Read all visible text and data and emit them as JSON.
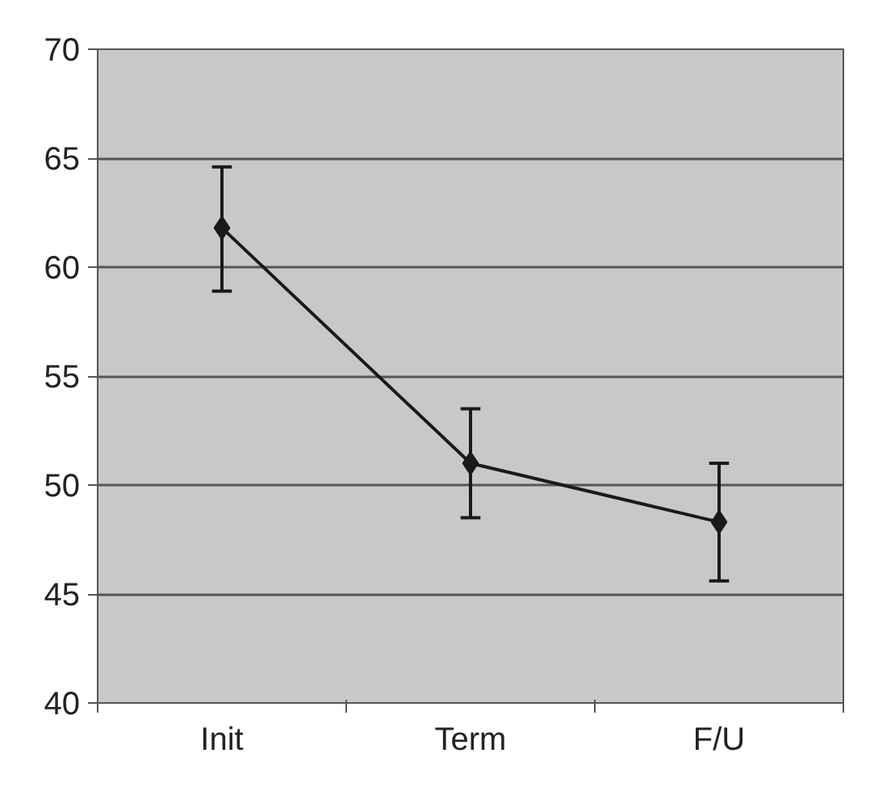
{
  "chart_data": {
    "type": "line",
    "categories": [
      "Init",
      "Term",
      "F/U"
    ],
    "series": [
      {
        "color": "#1a1a1a",
        "values": [
          61.8,
          51.0,
          48.3
        ],
        "errors": [
          [
            58.9,
            64.6
          ],
          [
            48.5,
            53.5
          ],
          [
            45.6,
            51.0
          ]
        ]
      }
    ],
    "ylim": [
      40,
      70
    ],
    "yticks": [
      40,
      45,
      50,
      55,
      60,
      65,
      70
    ],
    "grid": "y",
    "marker": "diamond",
    "line_style": "solid"
  }
}
